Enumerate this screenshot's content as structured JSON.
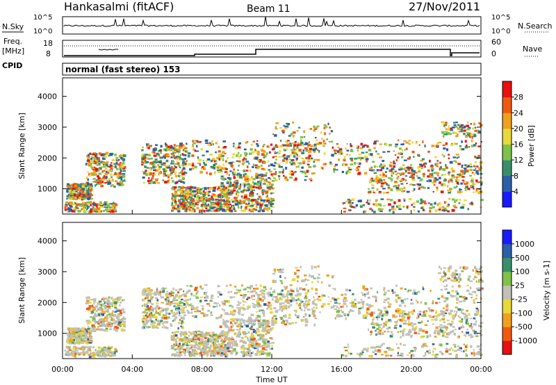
{
  "header": {
    "station": "Hankasalmi (fitACF)",
    "beam": "Beam 11",
    "date": "27/Nov/2011"
  },
  "strips": {
    "nsky_label": "N.Sky",
    "nsky_tick_top": "10^5",
    "nsky_tick_bottom": "10^0",
    "nsearch_label": "N.Search",
    "nsearch_tick_top": "10^5",
    "nsearch_tick_bottom": "10^0",
    "freq_label_1": "Freq.",
    "freq_label_2": "[MHz]",
    "freq_tick_top": "18",
    "freq_tick_bottom": "8",
    "nave_label": "Nave",
    "nave_tick_top": "60",
    "nave_tick_bottom": "0",
    "cpid_label": "CPID",
    "cpid_value": "normal (fast stereo) 153"
  },
  "colors": {
    "power": [
      "#1a1aff",
      "#2b5fa8",
      "#3a8f6a",
      "#7dc24a",
      "#e8d83a",
      "#f0a020",
      "#f05a10",
      "#e81010"
    ],
    "velocity": [
      "#e81010",
      "#f05a10",
      "#f0a020",
      "#e8d83a",
      "#c0c0b8",
      "#7dc24a",
      "#3a8f6a",
      "#2b5fa8",
      "#1a1aff"
    ]
  },
  "chart_data": [
    {
      "type": "heatmap",
      "name": "power",
      "ylabel": "Slant Range [km]",
      "xlabel": "Time UT",
      "xlim": [
        "00:00",
        "24:00"
      ],
      "xticks": [
        "00:00",
        "04:00",
        "08:00",
        "12:00",
        "16:00",
        "20:00",
        "00:00"
      ],
      "ylim": [
        180,
        4600
      ],
      "yticks": [
        1000,
        2000,
        3000,
        4000
      ],
      "colorbar": {
        "label": "Power [dB]",
        "ticks": [
          "4",
          "8",
          "12",
          "16",
          "20",
          "24",
          "28"
        ],
        "range": [
          0,
          32
        ]
      }
    },
    {
      "type": "heatmap",
      "name": "velocity",
      "ylabel": "Slant Range [km]",
      "xlabel": "Time UT",
      "xlim": [
        "00:00",
        "24:00"
      ],
      "xticks": [
        "00:00",
        "04:00",
        "08:00",
        "12:00",
        "16:00",
        "20:00",
        "00:00"
      ],
      "ylim": [
        180,
        4600
      ],
      "yticks": [
        1000,
        2000,
        3000,
        4000
      ],
      "colorbar": {
        "label": "Velocity [m s-1]",
        "ticks": [
          "1000",
          "500",
          "100",
          "25",
          "-25",
          "-100",
          "-500",
          "-1000"
        ]
      }
    }
  ],
  "xaxis_title": "Time UT"
}
